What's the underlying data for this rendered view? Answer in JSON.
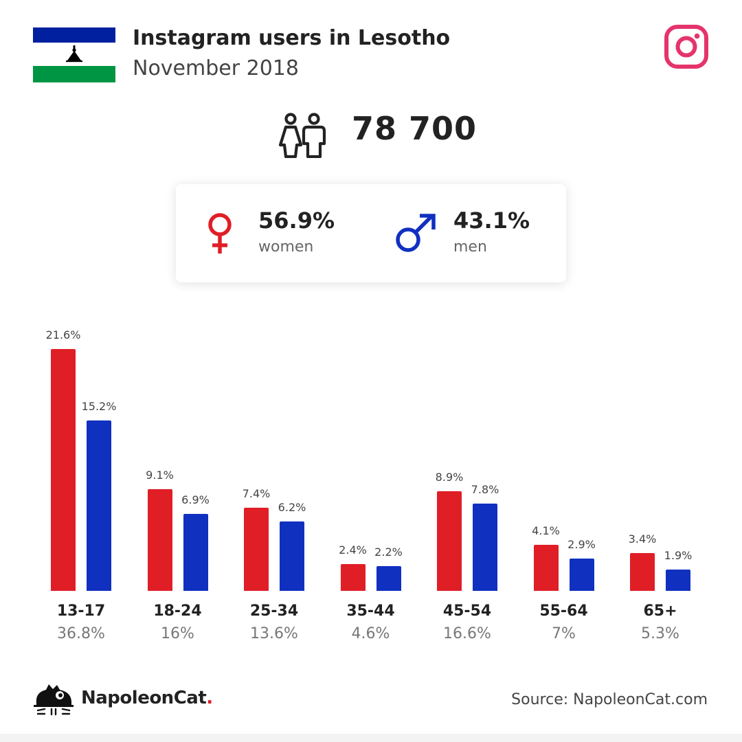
{
  "header": {
    "title": "Instagram users in Lesotho",
    "subtitle": "November 2018"
  },
  "total": {
    "value": "78 700",
    "icon": "people-icon"
  },
  "gender": {
    "women": {
      "percent": "56.9%",
      "label": "women",
      "color": "#e01e26",
      "icon": "female-symbol-icon"
    },
    "men": {
      "percent": "43.1%",
      "label": "men",
      "color": "#1030c0",
      "icon": "male-symbol-icon"
    }
  },
  "colors": {
    "women": "#e01e26",
    "men": "#1030c0",
    "instagram": "#e4346b",
    "flag_blue": "#00209f",
    "flag_green": "#009543"
  },
  "chart_data": {
    "type": "bar",
    "categories": [
      "13-17",
      "18-24",
      "25-34",
      "35-44",
      "45-54",
      "55-64",
      "65+"
    ],
    "category_totals": [
      "36.8%",
      "16%",
      "13.6%",
      "4.6%",
      "16.6%",
      "7%",
      "5.3%"
    ],
    "series": [
      {
        "values": [
          21.6,
          9.1,
          7.4,
          2.4,
          8.9,
          4.1,
          3.4
        ],
        "labels": [
          "21.6%",
          "9.1%",
          "7.4%",
          "2.4%",
          "8.9%",
          "4.1%",
          "3.4%"
        ]
      },
      {
        "values": [
          15.2,
          6.9,
          6.2,
          2.2,
          7.8,
          2.9,
          1.9
        ],
        "labels": [
          "15.2%",
          "6.9%",
          "6.2%",
          "2.2%",
          "7.8%",
          "2.9%",
          "1.9%"
        ]
      }
    ],
    "ylim": [
      0,
      21.6
    ],
    "grid": false
  },
  "footer": {
    "brand": "NapoleonCat",
    "brand_dot": ".",
    "source": "Source: NapoleonCat.com"
  }
}
